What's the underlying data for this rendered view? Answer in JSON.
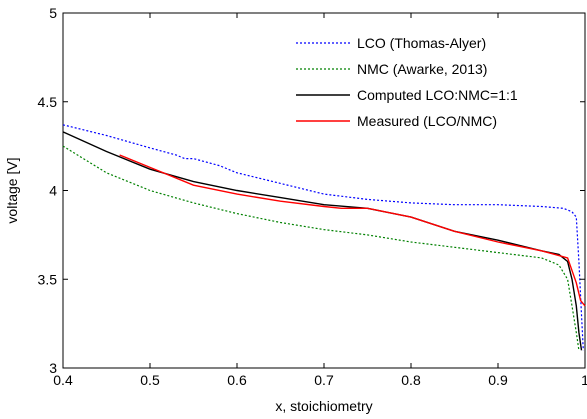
{
  "chart_data": {
    "type": "line",
    "title": "",
    "xlabel": "x, stoichiometry",
    "ylabel": "voltage [V]",
    "xlim": [
      0.4,
      1.0
    ],
    "ylim": [
      3.0,
      5.0
    ],
    "xticks": [
      0.4,
      0.5,
      0.6,
      0.7,
      0.8,
      0.9,
      1.0
    ],
    "xtick_labels": [
      "0.4",
      "0.5",
      "0.6",
      "0.7",
      "0.8",
      "0.9",
      "1"
    ],
    "yticks": [
      3.0,
      3.5,
      4.0,
      4.5,
      5.0
    ],
    "ytick_labels": [
      "3",
      "3.5",
      "4",
      "4.5",
      "5"
    ],
    "grid": false,
    "legend_position": "top-right",
    "series": [
      {
        "name": "LCO (Thomas-Alyer)",
        "color": "#0000ff",
        "style": "dotted",
        "x": [
          0.4,
          0.45,
          0.5,
          0.53,
          0.54,
          0.55,
          0.58,
          0.6,
          0.65,
          0.7,
          0.75,
          0.8,
          0.85,
          0.9,
          0.95,
          0.975,
          0.985,
          0.99,
          0.993,
          0.996,
          0.998
        ],
        "y": [
          4.37,
          4.31,
          4.24,
          4.2,
          4.18,
          4.18,
          4.14,
          4.1,
          4.04,
          3.98,
          3.95,
          3.93,
          3.92,
          3.92,
          3.91,
          3.9,
          3.88,
          3.85,
          3.6,
          3.3,
          3.1
        ]
      },
      {
        "name": "NMC (Awarke, 2013)",
        "color": "#008000",
        "style": "dotted",
        "x": [
          0.4,
          0.45,
          0.5,
          0.55,
          0.6,
          0.65,
          0.7,
          0.75,
          0.8,
          0.85,
          0.9,
          0.95,
          0.97,
          0.98,
          0.985,
          0.99,
          0.993
        ],
        "y": [
          4.25,
          4.1,
          4.0,
          3.93,
          3.87,
          3.82,
          3.78,
          3.75,
          3.71,
          3.68,
          3.65,
          3.62,
          3.58,
          3.5,
          3.35,
          3.2,
          3.1
        ]
      },
      {
        "name": "Computed LCO:NMC=1:1",
        "color": "#000000",
        "style": "solid",
        "x": [
          0.4,
          0.45,
          0.5,
          0.55,
          0.6,
          0.65,
          0.7,
          0.75,
          0.8,
          0.85,
          0.9,
          0.95,
          0.97,
          0.98,
          0.985,
          0.99,
          0.993,
          0.996
        ],
        "y": [
          4.33,
          4.22,
          4.12,
          4.05,
          4.0,
          3.96,
          3.92,
          3.9,
          3.85,
          3.77,
          3.72,
          3.66,
          3.64,
          3.6,
          3.5,
          3.35,
          3.2,
          3.1
        ]
      },
      {
        "name": "Measured (LCO/NMC)",
        "color": "#ff0000",
        "style": "solid",
        "x": [
          0.465,
          0.5,
          0.55,
          0.6,
          0.65,
          0.7,
          0.72,
          0.75,
          0.77,
          0.8,
          0.85,
          0.9,
          0.95,
          0.98,
          0.99,
          0.995,
          1.0
        ],
        "y": [
          4.2,
          4.13,
          4.03,
          3.98,
          3.94,
          3.91,
          3.9,
          3.9,
          3.88,
          3.85,
          3.77,
          3.71,
          3.66,
          3.62,
          3.48,
          3.38,
          3.35
        ]
      }
    ]
  }
}
